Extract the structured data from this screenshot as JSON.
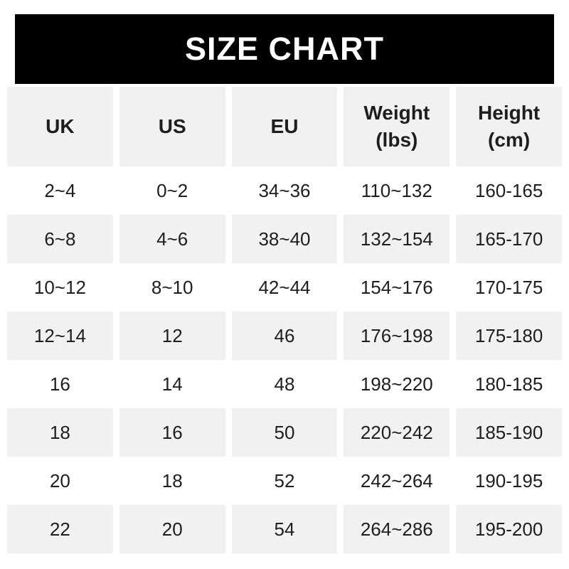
{
  "title": "SIZE CHART",
  "colors": {
    "header_bg": "#000000",
    "header_text": "#ffffff",
    "stripe_bg": "#f1f1f1",
    "text": "#1d1e20",
    "page_bg": "#ffffff"
  },
  "chart_data": {
    "type": "table",
    "title": "SIZE CHART",
    "columns": [
      {
        "label": "UK",
        "sub": ""
      },
      {
        "label": "US",
        "sub": ""
      },
      {
        "label": "EU",
        "sub": ""
      },
      {
        "label": "Weight",
        "sub": "(lbs)"
      },
      {
        "label": "Height",
        "sub": "(cm)"
      }
    ],
    "rows": [
      [
        "2~4",
        "0~2",
        "34~36",
        "110~132",
        "160-165"
      ],
      [
        "6~8",
        "4~6",
        "38~40",
        "132~154",
        "165-170"
      ],
      [
        "10~12",
        "8~10",
        "42~44",
        "154~176",
        "170-175"
      ],
      [
        "12~14",
        "12",
        "46",
        "176~198",
        "175-180"
      ],
      [
        "16",
        "14",
        "48",
        "198~220",
        "180-185"
      ],
      [
        "18",
        "16",
        "50",
        "220~242",
        "185-190"
      ],
      [
        "20",
        "18",
        "52",
        "242~264",
        "190-195"
      ],
      [
        "22",
        "20",
        "54",
        "264~286",
        "195-200"
      ]
    ],
    "layout": {
      "striped": "alternating rows, even rows shaded",
      "column_separator": "white gaps",
      "header_position": "top"
    }
  }
}
